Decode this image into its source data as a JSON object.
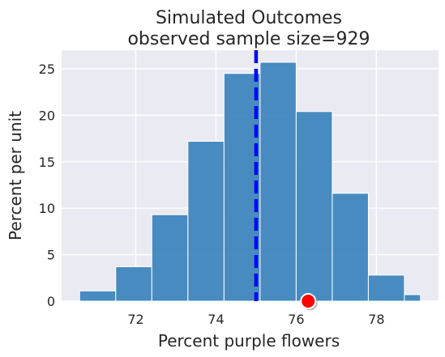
{
  "chart_data": {
    "type": "bar",
    "title_lines": [
      "Simulated Outcomes",
      "observed sample size=929"
    ],
    "xlabel": "Percent purple flowers",
    "ylabel": "Percent per unit",
    "xlim": [
      70.15,
      79.55
    ],
    "ylim": [
      0,
      27
    ],
    "xticks": [
      72,
      74,
      76,
      78
    ],
    "yticks": [
      0,
      5,
      10,
      15,
      20,
      25
    ],
    "grid": true,
    "background_color": "#EAEAF2",
    "bar_color": "#3E86BE",
    "bin_edges": [
      70.6,
      71.5,
      72.4,
      73.3,
      74.2,
      75.1,
      76.0,
      76.9,
      77.8,
      78.7,
      79.1
    ],
    "bin_values": [
      1.1,
      3.7,
      9.3,
      17.2,
      24.5,
      25.7,
      20.4,
      11.6,
      2.8,
      0.7
    ],
    "reference_line": {
      "x": 75,
      "color": "#0000FF",
      "style": "dashed"
    },
    "observed_point": {
      "x": 76.3,
      "y": 0,
      "color": "#FF0000"
    }
  }
}
